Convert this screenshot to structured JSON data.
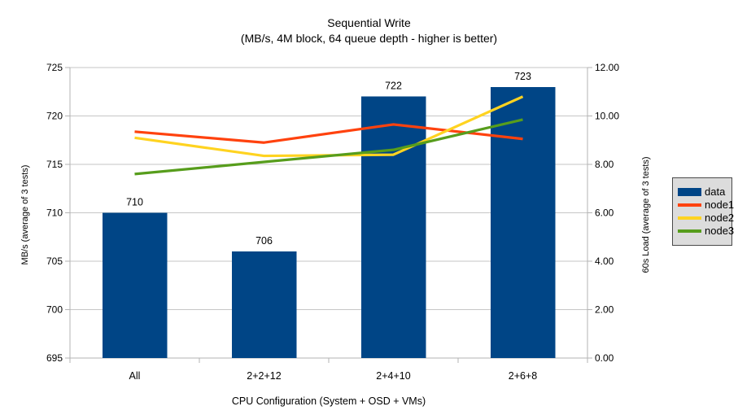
{
  "title": "Sequential Write",
  "subtitle": "(MB/s, 4M block, 64 queue depth - higher is better)",
  "chart_data": {
    "type": "bar",
    "subtype": "combo-bar-line-two-axes",
    "title": "Sequential Write",
    "subtitle": "(MB/s, 4M block, 64 queue depth - higher is better)",
    "categories": [
      "All",
      "2+2+12",
      "2+4+10",
      "2+6+8"
    ],
    "series": [
      {
        "name": "data",
        "type": "bar",
        "axis": "left",
        "color": "#004586",
        "values": [
          710,
          706,
          722,
          723
        ]
      },
      {
        "name": "node1",
        "type": "line",
        "axis": "right",
        "color": "#ff420e",
        "values": [
          9.35,
          8.9,
          9.65,
          9.05
        ]
      },
      {
        "name": "node2",
        "type": "line",
        "axis": "right",
        "color": "#ffd320",
        "values": [
          9.1,
          8.35,
          8.4,
          10.8
        ]
      },
      {
        "name": "node3",
        "type": "line",
        "axis": "right",
        "color": "#579d1c",
        "values": [
          7.6,
          8.1,
          8.6,
          9.85
        ]
      }
    ],
    "left_axis": {
      "title": "MB/s (average of 3 tests)",
      "min": 695,
      "max": 725,
      "step": 5,
      "decimals": 0
    },
    "right_axis": {
      "title": "60s Load (average of 3 tests)",
      "min": 0,
      "max": 12,
      "step": 2,
      "decimals": 2
    },
    "x_axis": {
      "title": "CPU Configuration (System + OSD + VMs)"
    },
    "bar_data_labels": [
      "710",
      "706",
      "722",
      "723"
    ],
    "grid": "horizontal",
    "legend_position": "right",
    "legend_entries": [
      "data",
      "node1",
      "node2",
      "node3"
    ],
    "colors": {
      "grid": "#c6c6c6",
      "axis": "#b3b3b3",
      "text": "#000000",
      "legend_bg": "#dcdcdc",
      "legend_border": "#4a4a4a",
      "background": "#ffffff"
    }
  }
}
